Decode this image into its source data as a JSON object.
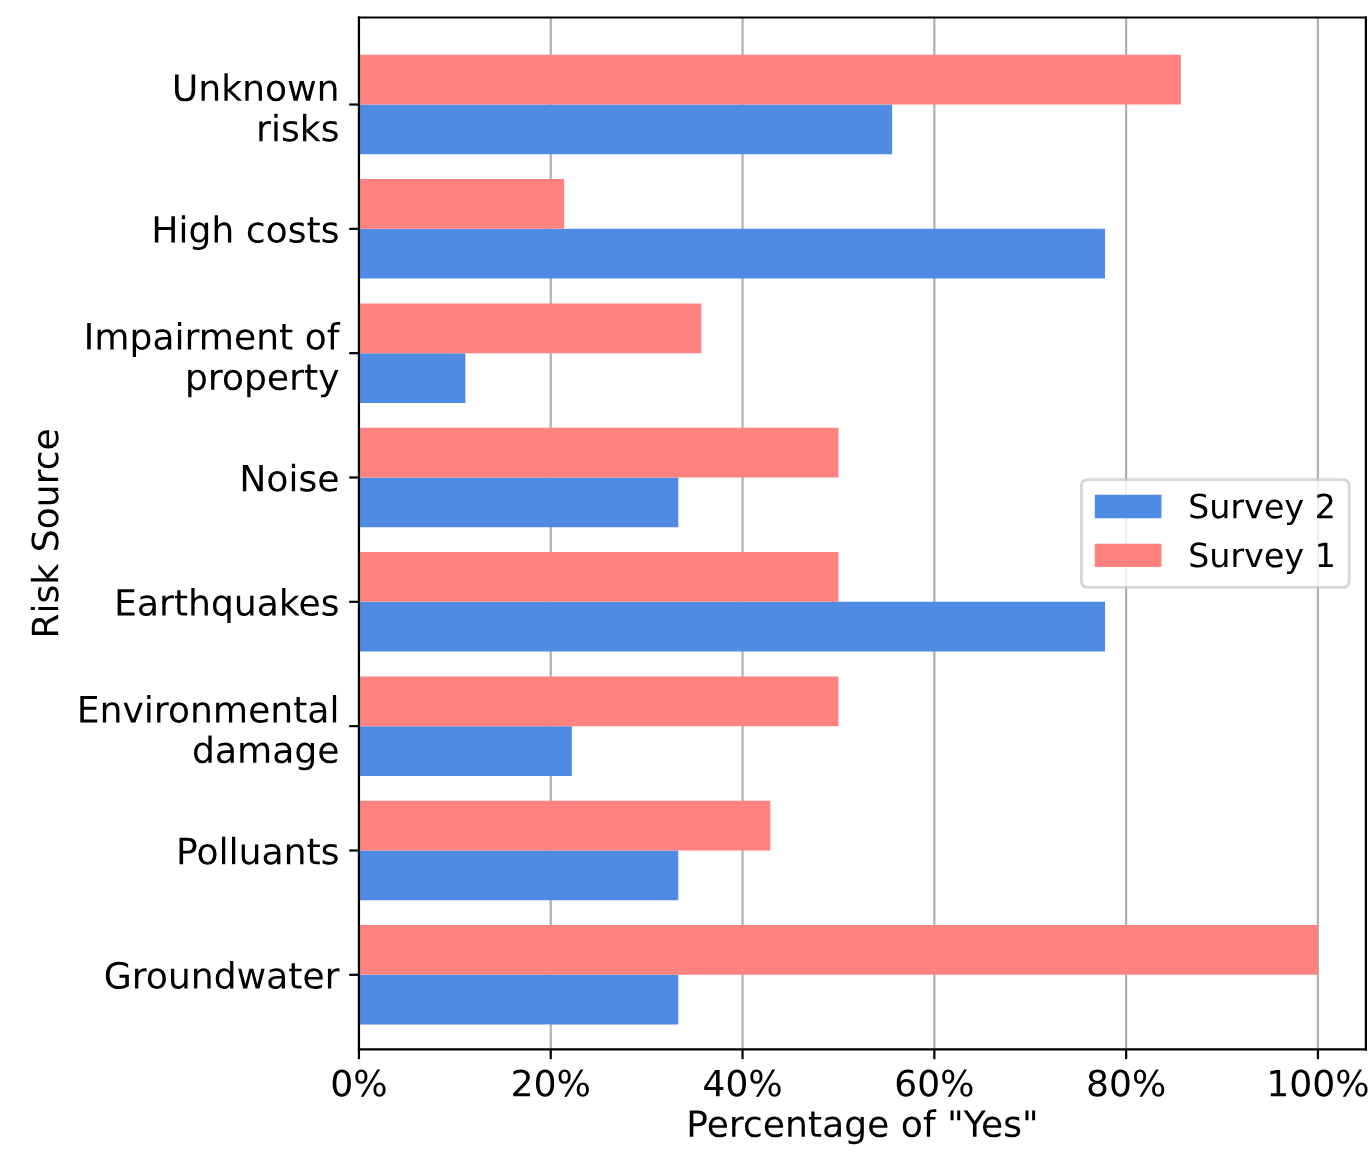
{
  "chart_data": {
    "type": "bar",
    "orientation": "horizontal",
    "xlabel": "Percentage of \"Yes\"",
    "ylabel": "Risk Source",
    "categories": [
      "Unknown\nrisks",
      "High costs",
      "Impairment of\nproperty",
      "Noise",
      "Earthquakes",
      "Environmental\ndamage",
      "Polluants",
      "Groundwater"
    ],
    "series": [
      {
        "name": "Survey 2",
        "color": "#4f8be3",
        "values": [
          55.6,
          77.8,
          11.1,
          33.3,
          77.8,
          22.2,
          33.3,
          33.3
        ]
      },
      {
        "name": "Survey 1",
        "color": "#fe8380",
        "values": [
          85.7,
          21.4,
          35.7,
          50.0,
          50.0,
          50.0,
          42.9,
          100.0
        ]
      }
    ],
    "xlim": [
      0,
      105
    ],
    "xticks": [
      {
        "value": 0,
        "label": "0%"
      },
      {
        "value": 20,
        "label": "20%"
      },
      {
        "value": 40,
        "label": "40%"
      },
      {
        "value": 60,
        "label": "60%"
      },
      {
        "value": 80,
        "label": "80%"
      },
      {
        "value": 100,
        "label": "100%"
      }
    ],
    "grid": "x",
    "legend": "center right"
  }
}
